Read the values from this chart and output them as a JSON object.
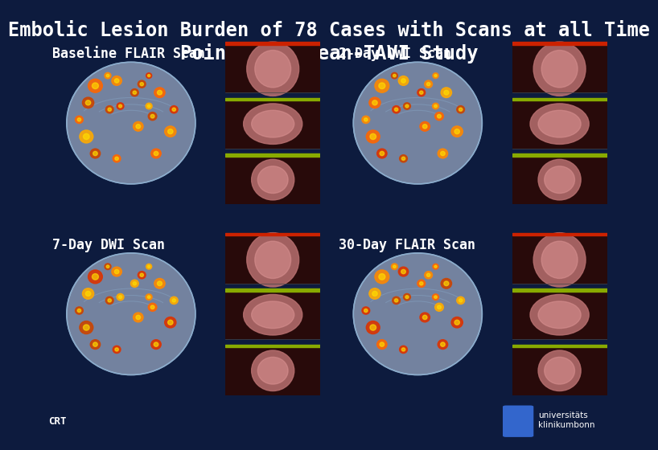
{
  "title": "Embolic Lesion Burden of 78 Cases with Scans at all Time\nPoints in Clean-TAVI Study",
  "background_color": "#0d1b3e",
  "title_color": "#ffffff",
  "title_fontsize": 17,
  "title_font": "monospace",
  "quadrant_labels": [
    "Baseline FLAIR Scan",
    "2-Day DWI Scan",
    "7-Day DWI Scan",
    "30-Day FLAIR Scan"
  ],
  "label_color": "#ffffff",
  "label_fontsize": 12,
  "quadrant_bg": "#aabcd8",
  "scan_panel_bg": "#180808",
  "crt_text": "CRT",
  "logo_text": "universitäts\nklinikumbonn"
}
